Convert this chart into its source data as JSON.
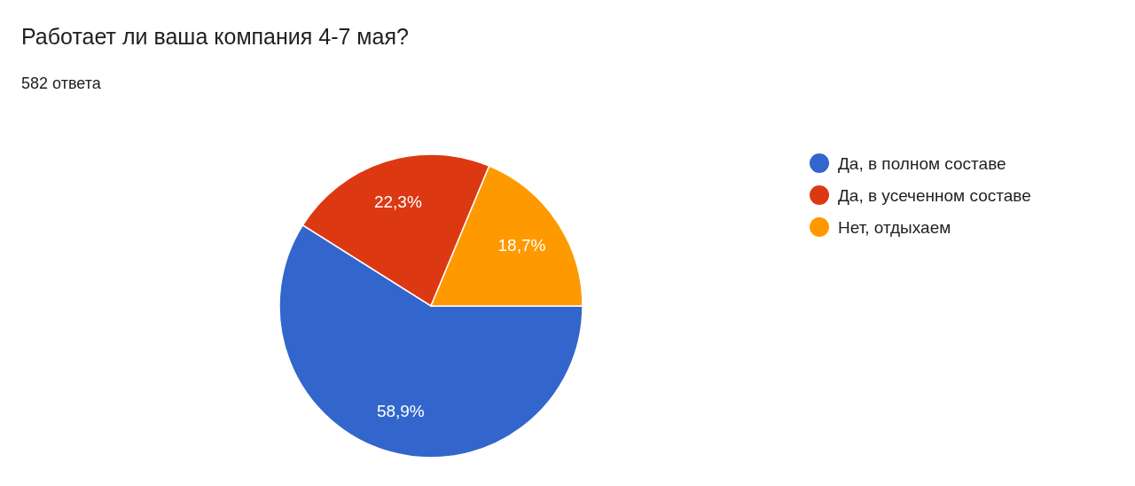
{
  "chart_data": {
    "type": "pie",
    "title": "Работает ли ваша компания 4-7 мая?",
    "subtitle": "582 ответа",
    "categories": [
      "Да, в полном составе",
      "Да, в усеченном составе",
      "Нет, отдыхаем"
    ],
    "values": [
      58.9,
      22.3,
      18.7
    ],
    "colors": [
      "#3366cc",
      "#dc3912",
      "#ff9900"
    ],
    "value_labels": [
      "58,9%",
      "22,3%",
      "18,7%"
    ],
    "legend": "right"
  }
}
